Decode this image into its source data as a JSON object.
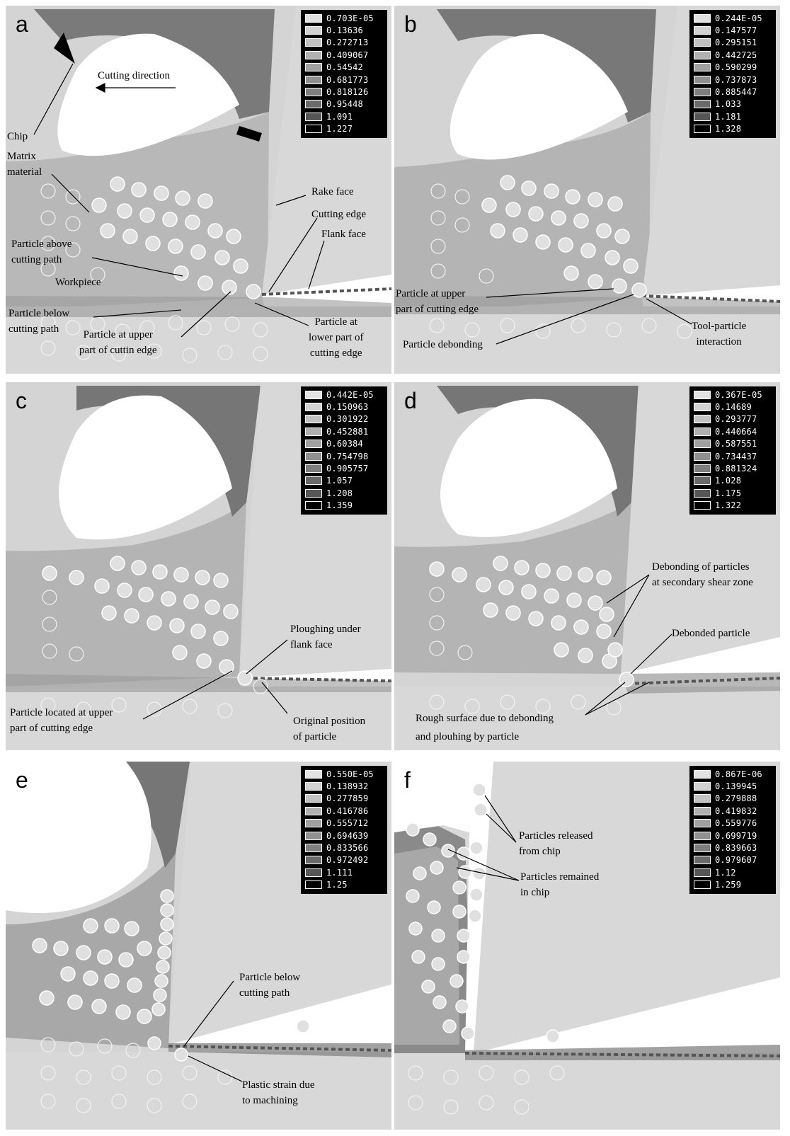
{
  "legend_colors": [
    "#e2e2e2",
    "#d2d2d2",
    "#c2c2c2",
    "#b0b0b0",
    "#a0a0a0",
    "#909090",
    "#7e7e7e",
    "#6a6a6a",
    "#565656",
    "#000000"
  ],
  "panels": [
    {
      "letter": "a",
      "legend": [
        "0.703E-05",
        "0.13636",
        "0.272713",
        "0.409067",
        "0.54542",
        "0.681773",
        "0.818126",
        "0.95448",
        "1.091",
        "1.227"
      ],
      "labels": [
        "Cutting direction",
        "Chip",
        "Matrix\nmaterial",
        "Rake face",
        "Cutting edge",
        "Flank face",
        "Particle above\ncutting path",
        "Workpiece",
        "Particle below\ncutting path",
        "Particle at upper\npart of cuttin edge",
        "Particle at\nlower part of\ncutting edge"
      ]
    },
    {
      "letter": "b",
      "legend": [
        "0.244E-05",
        "0.147577",
        "0.295151",
        "0.442725",
        "0.590299",
        "0.737873",
        "0.885447",
        "1.033",
        "1.181",
        "1.328"
      ],
      "labels": [
        "Particle at upper\npart of cutting edge",
        "Particle debonding",
        "Tool-particle\ninteraction"
      ]
    },
    {
      "letter": "c",
      "legend": [
        "0.442E-05",
        "0.150963",
        "0.301922",
        "0.452881",
        "0.60384",
        "0.754798",
        "0.905757",
        "1.057",
        "1.208",
        "1.359"
      ],
      "labels": [
        "Ploughing under\nflank face",
        "Particle located at upper\npart of cutting edge",
        "Original position\nof particle"
      ]
    },
    {
      "letter": "d",
      "legend": [
        "0.367E-05",
        "0.14689",
        "0.293777",
        "0.440664",
        "0.587551",
        "0.734437",
        "0.881324",
        "1.028",
        "1.175",
        "1.322"
      ],
      "labels": [
        "Debonding of particles\nat secondary shear zone",
        "Debonded particle",
        "Rough surface due to debonding\nand plouhing by particle"
      ]
    },
    {
      "letter": "e",
      "legend": [
        "0.550E-05",
        "0.138932",
        "0.277859",
        "0.416786",
        "0.555712",
        "0.694639",
        "0.833566",
        "0.972492",
        "1.111",
        "1.25"
      ],
      "labels": [
        "Particle below\ncutting path",
        "Plastic strain due\nto machining"
      ]
    },
    {
      "letter": "f",
      "legend": [
        "0.867E-06",
        "0.139945",
        "0.279888",
        "0.419832",
        "0.559776",
        "0.699719",
        "0.839663",
        "0.979607",
        "1.12",
        "1.259"
      ],
      "labels": [
        "Particles released\nfrom chip",
        "Particles remained\nin chip"
      ]
    }
  ]
}
